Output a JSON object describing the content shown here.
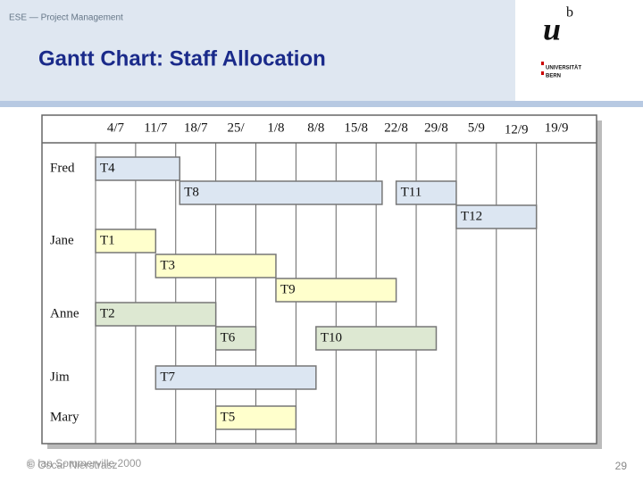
{
  "header": {
    "section": "ESE — Project Management",
    "title": "Gantt Chart: Staff Allocation"
  },
  "logo": {
    "mark": "u",
    "superscript": "b",
    "line1": "UNIVERSITÄT",
    "line2": "BERN"
  },
  "footer": {
    "copyright1": "© Ian Sommerville 2000",
    "copyright2": "© Oscar Nierstrasz",
    "page": "29"
  },
  "chart_data": {
    "type": "gantt",
    "categories": [
      "4/7",
      "11/7",
      "18/7",
      "25/",
      "1/8",
      "8/8",
      "15/8",
      "22/8",
      "29/8",
      "5/9",
      "12/9",
      "19/9"
    ],
    "xlim": [
      0,
      12.5
    ],
    "rows": [
      {
        "name": "Fred",
        "color": "#dce6f2",
        "tasks": [
          {
            "name": "T4",
            "start": 0,
            "end": 2.1
          }
        ]
      },
      {
        "name": null,
        "color": "#dce6f2",
        "tasks": [
          {
            "name": "T8",
            "start": 2.1,
            "end": 7.15
          },
          {
            "name": "T11",
            "start": 7.5,
            "end": 9
          }
        ]
      },
      {
        "name": null,
        "color": "#dce6f2",
        "tasks": [
          {
            "name": "T12",
            "start": 9,
            "end": 11
          }
        ]
      },
      {
        "name": "Jane",
        "color": "#ffffcc",
        "tasks": [
          {
            "name": "T1",
            "start": 0,
            "end": 1.5
          }
        ]
      },
      {
        "name": null,
        "color": "#ffffcc",
        "tasks": [
          {
            "name": "T3",
            "start": 1.5,
            "end": 4.5
          }
        ]
      },
      {
        "name": null,
        "color": "#ffffcc",
        "tasks": [
          {
            "name": "T9",
            "start": 4.5,
            "end": 7.5
          }
        ]
      },
      {
        "name": "Anne",
        "color": "#dde8d2",
        "tasks": [
          {
            "name": "T2",
            "start": 0,
            "end": 3
          }
        ]
      },
      {
        "name": null,
        "color": "#dde8d2",
        "tasks": [
          {
            "name": "T6",
            "start": 3,
            "end": 4
          },
          {
            "name": "T10",
            "start": 5.5,
            "end": 8.5
          }
        ]
      },
      {
        "name": "Jim",
        "color": "#dce6f2",
        "tasks": [
          {
            "name": "T7",
            "start": 1.5,
            "end": 5.5
          }
        ]
      },
      {
        "name": "Mary",
        "color": "#ffffcc",
        "tasks": [
          {
            "name": "T5",
            "start": 3,
            "end": 5
          }
        ]
      }
    ]
  }
}
